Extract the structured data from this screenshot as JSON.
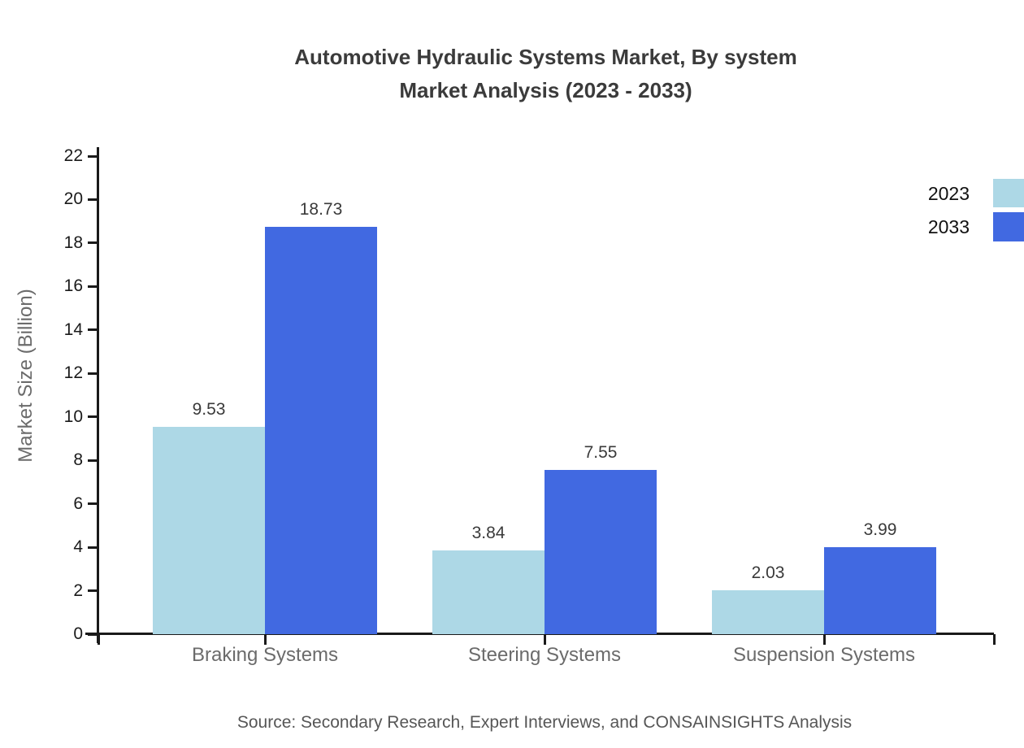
{
  "title": {
    "line1": "Automotive Hydraulic Systems Market, By system",
    "line2": "Market Analysis (2023 - 2033)"
  },
  "source_note": "Source: Secondary Research, Expert Interviews, and CONSAINSIGHTS Analysis",
  "chart_data": {
    "type": "bar",
    "title": "Automotive Hydraulic Systems Market, By system Market Analysis (2023 - 2033)",
    "categories": [
      "Braking Systems",
      "Steering Systems",
      "Suspension Systems"
    ],
    "series": [
      {
        "name": "2023",
        "color": "#ADD8E6",
        "values": [
          9.53,
          3.84,
          2.03
        ]
      },
      {
        "name": "2033",
        "color": "#4169E1",
        "values": [
          18.73,
          7.55,
          3.99
        ]
      }
    ],
    "xlabel": "",
    "ylabel": "Market Size (Billion)",
    "ylim": [
      0,
      22
    ],
    "ytick_step": 2,
    "yticks": [
      0,
      2,
      4,
      6,
      8,
      10,
      12,
      14,
      16,
      18,
      20,
      22
    ],
    "grid": false,
    "legend_position": "top-right",
    "value_labels": true,
    "value_label_format": "0.00"
  },
  "colors": {
    "background": "#ffffff",
    "axis": "#1a1a1a",
    "title_text": "#3b3b3b",
    "tick_label_text": "#1a1a1a",
    "category_text": "#6b6b6b",
    "value_text": "#3a3a3a",
    "ylabel_text": "#6b6b6b",
    "legend_text": "#111111",
    "source_text": "#565656",
    "series_2023": "#ADD8E6",
    "series_2033": "#4169E1"
  }
}
